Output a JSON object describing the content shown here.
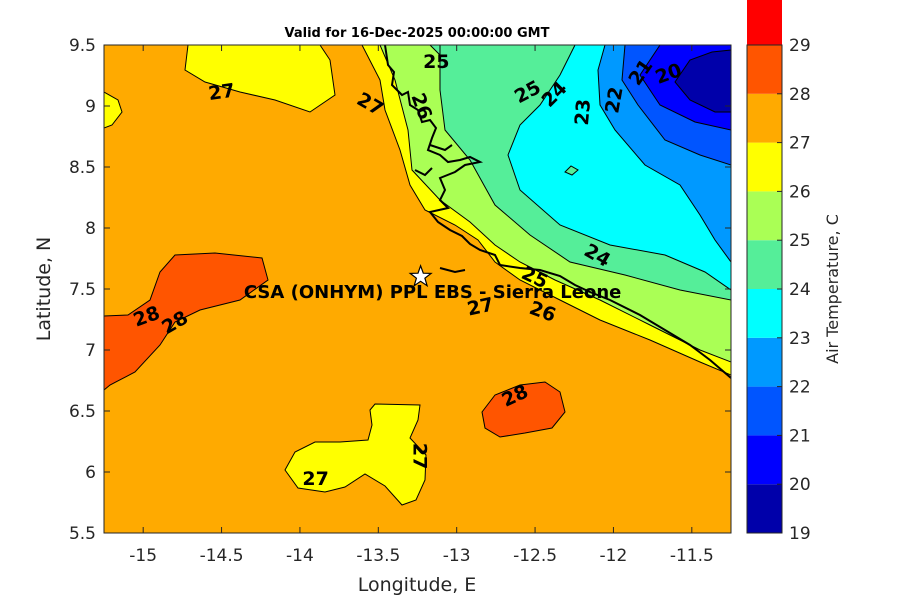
{
  "chart_data": {
    "type": "heatmap",
    "title": "Valid for 16-Dec-2025 00:00:00 GMT",
    "xlabel": "Longitude, E",
    "ylabel": "Latitude, N",
    "xlim": [
      -15.25,
      -11.25
    ],
    "ylim": [
      5.5,
      9.5
    ],
    "xticks": [
      -15,
      -14.5,
      -14,
      -13.5,
      -13,
      -12.5,
      -12,
      -11.5
    ],
    "yticks": [
      5.5,
      6,
      6.5,
      7,
      7.5,
      8,
      8.5,
      9,
      9.5
    ],
    "colorbar": {
      "label": "Air Temperature, C",
      "ticks": [
        19,
        20,
        21,
        22,
        23,
        24,
        25,
        26,
        27,
        28,
        29
      ],
      "colors": [
        "#0000aa",
        "#0000ff",
        "#0055ff",
        "#0099ff",
        "#00ffff",
        "#55ee99",
        "#aaff55",
        "#ffff00",
        "#ffaa00",
        "#ff5500",
        "#ff0000"
      ]
    },
    "contour_labels": [
      {
        "text": "27",
        "lon": -14.5,
        "lat": 9.12
      },
      {
        "text": "27",
        "lon": -13.55,
        "lat": 9.02
      },
      {
        "text": "25",
        "lon": -13.13,
        "lat": 9.37
      },
      {
        "text": "26",
        "lon": -13.22,
        "lat": 9.0
      },
      {
        "text": "25",
        "lon": -12.55,
        "lat": 9.12
      },
      {
        "text": "24",
        "lon": -12.38,
        "lat": 9.1
      },
      {
        "text": "23",
        "lon": -12.2,
        "lat": 8.95
      },
      {
        "text": "22",
        "lon": -12.0,
        "lat": 9.05
      },
      {
        "text": "21",
        "lon": -11.83,
        "lat": 9.28
      },
      {
        "text": "20",
        "lon": -11.65,
        "lat": 9.27
      },
      {
        "text": "24",
        "lon": -12.1,
        "lat": 7.78
      },
      {
        "text": "28",
        "lon": -14.98,
        "lat": 7.28
      },
      {
        "text": "28",
        "lon": -14.8,
        "lat": 7.23
      },
      {
        "text": "25",
        "lon": -12.5,
        "lat": 7.6
      },
      {
        "text": "27",
        "lon": -12.85,
        "lat": 7.36
      },
      {
        "text": "26",
        "lon": -12.45,
        "lat": 7.32
      },
      {
        "text": "28",
        "lon": -12.63,
        "lat": 6.63
      },
      {
        "text": "27",
        "lon": -13.23,
        "lat": 6.13
      },
      {
        "text": "27",
        "lon": -13.9,
        "lat": 5.95
      }
    ],
    "annotation": {
      "text": "CSA (ONHYM) PPL EBS - Sierra Leone",
      "lon": -13.23,
      "lat": 7.6
    }
  }
}
